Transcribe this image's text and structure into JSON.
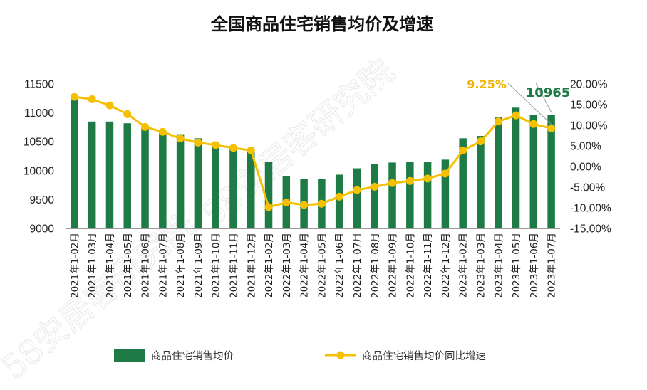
{
  "chart_data": {
    "type": "bar+line",
    "title": "全国商品住宅销售均价及增速",
    "categories": [
      "2021年1-02月",
      "2021年1-03月",
      "2021年1-04月",
      "2021年1-05月",
      "2021年1-06月",
      "2021年1-07月",
      "2021年1-08月",
      "2021年1-09月",
      "2021年1-10月",
      "2021年1-11月",
      "2021年1-12月",
      "2022年1-02月",
      "2022年1-03月",
      "2022年1-04月",
      "2022年1-05月",
      "2022年1-06月",
      "2022年1-07月",
      "2022年1-08月",
      "2022年1-09月",
      "2022年1-10月",
      "2022年1-11月",
      "2022年1-12月",
      "2023年1-02月",
      "2023年1-03月",
      "2023年1-04月",
      "2023年1-05月",
      "2023年1-06月",
      "2023年1-07月"
    ],
    "series": [
      {
        "name": "商品住宅销售均价",
        "type": "bar",
        "axis": "left",
        "color": "#1e7b45",
        "values": [
          11250,
          10850,
          10850,
          10820,
          10730,
          10650,
          10630,
          10560,
          10500,
          10430,
          10360,
          10150,
          9910,
          9860,
          9860,
          9930,
          10040,
          10120,
          10140,
          10150,
          10150,
          10190,
          10560,
          10600,
          10920,
          11090,
          10970,
          10965
        ]
      },
      {
        "name": "商品住宅销售均价同比增速",
        "type": "line",
        "axis": "right",
        "color": "#f5c000",
        "unit": "%",
        "values": [
          16.9,
          16.3,
          14.8,
          12.7,
          9.6,
          8.4,
          6.8,
          5.8,
          5.2,
          4.5,
          3.9,
          -9.8,
          -8.7,
          -9.3,
          -9.0,
          -7.3,
          -5.7,
          -4.9,
          -4.0,
          -3.5,
          -2.9,
          -1.7,
          3.9,
          6.1,
          10.9,
          12.4,
          10.3,
          9.25
        ]
      }
    ],
    "y_left": {
      "min": 9000,
      "max": 11500,
      "ticks": [
        "9000",
        "9500",
        "10000",
        "10500",
        "11000",
        "11500"
      ]
    },
    "y_right": {
      "min": -15,
      "max": 20,
      "ticks": [
        "-15.00%",
        "-10.00%",
        "-5.00%",
        "0.00%",
        "5.00%",
        "10.00%",
        "15.00%",
        "20.00%"
      ]
    },
    "annotations": {
      "last_growth": "9.25%",
      "last_price": "10965"
    },
    "legend": {
      "position": "bottom",
      "bar_label": "商品住宅销售均价",
      "line_label": "商品住宅销售均价同比增速"
    }
  },
  "watermark": "58安居客研究院"
}
